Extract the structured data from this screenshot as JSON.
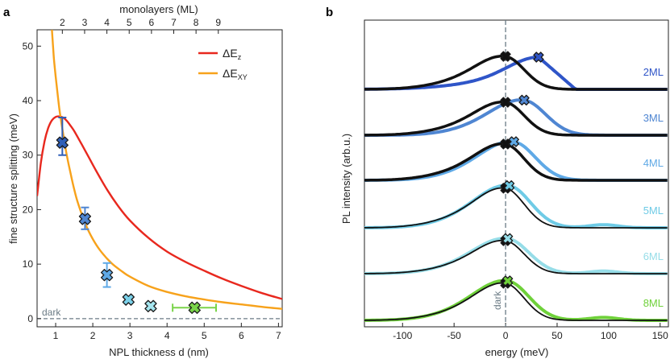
{
  "panel_a": {
    "label": "a",
    "top_axis_title": "monolayers (ML)",
    "x_axis_title": "NPL thickness d (nm)",
    "y_axis_title": "fine structure splitting (meV)",
    "dark_label": "dark",
    "legend": [
      {
        "main": "ΔE",
        "sub": "z",
        "color": "#e8281e"
      },
      {
        "main": "ΔE",
        "sub": "XY",
        "color": "#f7a21b"
      }
    ]
  },
  "panel_b": {
    "label": "b",
    "x_axis_title": "energy (meV)",
    "y_axis_title": "PL intensity (arb.u.)",
    "dark_label": "dark"
  },
  "chart_data": [
    {
      "type": "scatter",
      "title": "",
      "xlabel": "NPL thickness d (nm)",
      "ylabel": "fine structure splitting (meV)",
      "xlim": [
        0.5,
        7.1
      ],
      "ylim": [
        -1.5,
        53
      ],
      "x_ticks": [
        1,
        2,
        3,
        4,
        5,
        6,
        7
      ],
      "y_ticks": [
        0,
        10,
        20,
        30,
        40,
        50
      ],
      "top_axis": {
        "label": "monolayers (ML)",
        "ticks": [
          2,
          3,
          4,
          5,
          6,
          7,
          8,
          9
        ],
        "nm_per_ml": 0.6,
        "offset_nm": -0.02
      },
      "curves": [
        {
          "name": "ΔE_z",
          "color": "#e8281e",
          "x": [
            0.5,
            0.6,
            0.7,
            0.8,
            0.9,
            1.0,
            1.1,
            1.2,
            1.3,
            1.4,
            1.5,
            1.7,
            1.9,
            2.1,
            2.4,
            2.7,
            3.0,
            3.5,
            4.0,
            4.5,
            5.0,
            5.5,
            6.0,
            6.5,
            7.1
          ],
          "y": [
            22.5,
            28.5,
            32.5,
            35.0,
            36.4,
            37.0,
            37.1,
            36.9,
            36.3,
            35.4,
            34.4,
            32.0,
            29.5,
            27.0,
            23.5,
            20.5,
            18.0,
            14.8,
            12.3,
            10.4,
            8.8,
            7.3,
            6.0,
            4.8,
            3.6
          ]
        },
        {
          "name": "ΔE_XY",
          "color": "#f7a21b",
          "x": [
            0.9,
            0.95,
            1.0,
            1.1,
            1.2,
            1.3,
            1.4,
            1.5,
            1.6,
            1.8,
            2.0,
            2.2,
            2.5,
            2.8,
            3.0,
            3.5,
            4.0,
            4.5,
            5.0,
            5.5,
            6.0,
            6.5,
            7.1
          ],
          "y": [
            53.0,
            48.0,
            44.5,
            38.5,
            34.0,
            30.0,
            26.7,
            23.7,
            21.2,
            17.4,
            14.6,
            12.5,
            10.2,
            8.6,
            7.7,
            6.0,
            4.9,
            4.1,
            3.5,
            3.0,
            2.6,
            2.2,
            1.8
          ]
        }
      ],
      "points": [
        {
          "ml": 2,
          "x": 1.18,
          "y": 32.3,
          "y_err": [
            30.0,
            36.9
          ],
          "x_err": null,
          "color": "#2f5fb8"
        },
        {
          "ml": 3,
          "x": 1.79,
          "y": 18.3,
          "y_err": [
            16.4,
            20.4
          ],
          "x_err": null,
          "color": "#4f86d2"
        },
        {
          "ml": 4,
          "x": 2.38,
          "y": 8.0,
          "y_err": [
            5.8,
            10.2
          ],
          "x_err": null,
          "color": "#5fa9e6"
        },
        {
          "ml": 5,
          "x": 2.96,
          "y": 3.5,
          "y_err": null,
          "x_err": null,
          "color": "#7bd1ea"
        },
        {
          "ml": 6,
          "x": 3.56,
          "y": 2.3,
          "y_err": null,
          "x_err": null,
          "color": "#a6e6ef"
        },
        {
          "ml": 8,
          "x": 4.74,
          "y": 2.0,
          "y_err": null,
          "x_err": [
            4.15,
            5.32
          ],
          "color": "#7ad44a"
        }
      ],
      "dark_line_y": 0
    },
    {
      "type": "line",
      "title": "",
      "xlabel": "energy (meV)",
      "ylabel": "PL intensity (arb.u.)",
      "xlim": [
        -137,
        158
      ],
      "x_ticks": [
        -100,
        -50,
        0,
        50,
        100,
        150
      ],
      "dark_line_x": 0,
      "series": [
        {
          "name": "2ML",
          "label_color": "#2f55c8",
          "color": "#2f55c8",
          "peak_black": 0,
          "peak_color": 32
        },
        {
          "name": "3ML",
          "label_color": "#4f86d2",
          "color": "#4f86d2",
          "peak_black": 0,
          "peak_color": 18
        },
        {
          "name": "4ML",
          "label_color": "#5fa9e6",
          "color": "#5fa9e6",
          "peak_black": 0,
          "peak_color": 8
        },
        {
          "name": "5ML",
          "label_color": "#6fcbe6",
          "color": "#6fcbe6",
          "peak_black": 0,
          "peak_color": 3.5
        },
        {
          "name": "6ML",
          "label_color": "#96dde8",
          "color": "#96dde8",
          "peak_black": 0,
          "peak_color": 2
        },
        {
          "name": "8ML",
          "label_color": "#6fd13a",
          "color": "#6fd13a",
          "peak_black": 0,
          "peak_color": 2
        }
      ]
    }
  ]
}
